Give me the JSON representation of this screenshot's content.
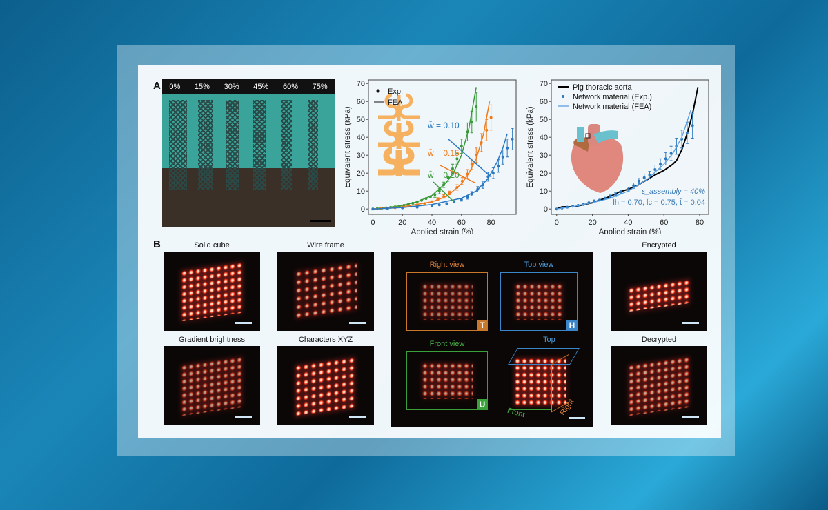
{
  "panel_a": {
    "label": "A",
    "strain_labels": [
      "0%",
      "15%",
      "30%",
      "45%",
      "60%",
      "75%"
    ]
  },
  "panel_b": {
    "label": "B",
    "captions": {
      "solid": "Solid cube",
      "wire": "Wire frame",
      "gradient": "Gradient brightness",
      "xyz": "Characters XYZ",
      "encrypted": "Encrypted",
      "decrypted": "Decrypted"
    },
    "views": {
      "right": "Right view",
      "top": "Top view",
      "front": "Front view",
      "tag_t": "T",
      "tag_h": "H",
      "tag_u": "U",
      "cube_top": "Top",
      "cube_front": "Front",
      "cube_right": "Right"
    }
  },
  "chart_data": [
    {
      "type": "line",
      "xlabel": "Applied strain (%)",
      "ylabel": "Equivalent stress (kPa)",
      "xlim": [
        -3,
        97
      ],
      "ylim": [
        -3,
        72
      ],
      "xticks": [
        0,
        20,
        40,
        60,
        80
      ],
      "yticks": [
        0,
        10,
        20,
        30,
        40,
        50,
        60,
        70
      ],
      "legend": {
        "exp": "Exp.",
        "fea": "FEA"
      },
      "legend_position": "top-left",
      "series": [
        {
          "name": "w̄ = 0.20",
          "color": "#3a9a3a",
          "exp": [
            [
              0,
              0,
              0
            ],
            [
              3,
              0.2,
              0
            ],
            [
              6,
              0.4,
              0
            ],
            [
              9,
              0.6,
              0
            ],
            [
              12,
              0.9,
              0
            ],
            [
              15,
              1.2,
              0
            ],
            [
              18,
              1.6,
              0
            ],
            [
              21,
              2,
              0
            ],
            [
              24,
              2.5,
              0
            ],
            [
              27,
              3.2,
              0
            ],
            [
              30,
              4,
              0
            ],
            [
              33,
              4.8,
              0
            ],
            [
              36,
              5.8,
              0
            ],
            [
              39,
              6.8,
              0
            ],
            [
              42,
              8,
              1.5
            ],
            [
              45,
              10,
              1.5
            ],
            [
              48,
              13.5,
              1.5
            ],
            [
              51,
              17.5,
              2
            ],
            [
              54,
              22.5,
              2.5
            ],
            [
              57,
              28,
              3
            ],
            [
              60,
              35,
              4
            ],
            [
              64,
              43,
              5
            ],
            [
              67,
              48.5,
              6
            ],
            [
              70,
              57,
              8
            ]
          ],
          "fea": [
            [
              0,
              0
            ],
            [
              10,
              0.8
            ],
            [
              20,
              2
            ],
            [
              30,
              4
            ],
            [
              40,
              7.5
            ],
            [
              50,
              15
            ],
            [
              55,
              21
            ],
            [
              60,
              30
            ],
            [
              65,
              45
            ],
            [
              70,
              68
            ]
          ]
        },
        {
          "name": "w̄ = 0.15",
          "color": "#f07a1a",
          "exp": [
            [
              0,
              0,
              0
            ],
            [
              5,
              0.2,
              0
            ],
            [
              10,
              0.4,
              0
            ],
            [
              15,
              0.7,
              0
            ],
            [
              20,
              1,
              0
            ],
            [
              25,
              1.6,
              0
            ],
            [
              30,
              2.3,
              0
            ],
            [
              35,
              3,
              0
            ],
            [
              40,
              4,
              0
            ],
            [
              44,
              5.5,
              0.8
            ],
            [
              48,
              7,
              1
            ],
            [
              52,
              9,
              1
            ],
            [
              57,
              12,
              1.5
            ],
            [
              60.5,
              15.5,
              2
            ],
            [
              64,
              19.5,
              2.5
            ],
            [
              67,
              25,
              3
            ],
            [
              70,
              30,
              4
            ],
            [
              73.5,
              37,
              5
            ],
            [
              77,
              44,
              6
            ],
            [
              80,
              51,
              7
            ]
          ],
          "fea": [
            [
              0,
              0
            ],
            [
              20,
              1.2
            ],
            [
              40,
              4
            ],
            [
              50,
              7
            ],
            [
              60,
              14
            ],
            [
              65,
              20
            ],
            [
              70,
              28
            ],
            [
              75,
              42
            ],
            [
              79,
              60
            ]
          ]
        },
        {
          "name": "w̄ = 0.10",
          "color": "#2a78c0",
          "exp": [
            [
              0,
              0,
              0
            ],
            [
              10,
              0.3,
              0
            ],
            [
              20,
              0.6,
              0
            ],
            [
              30,
              1,
              0
            ],
            [
              40,
              1.8,
              0
            ],
            [
              45,
              2.3,
              0
            ],
            [
              50,
              3,
              0
            ],
            [
              55,
              4,
              0
            ],
            [
              60,
              5.2,
              0.8
            ],
            [
              64,
              6.5,
              1
            ],
            [
              67,
              8.5,
              1.2
            ],
            [
              71,
              11,
              1.5
            ],
            [
              74.5,
              13.5,
              2
            ],
            [
              78,
              18,
              2.5
            ],
            [
              81.5,
              20,
              3
            ],
            [
              85,
              24,
              3.5
            ],
            [
              88,
              29,
              4
            ],
            [
              91,
              34,
              5
            ],
            [
              94.5,
              39,
              6
            ]
          ],
          "fea": [
            [
              0,
              0
            ],
            [
              20,
              0.8
            ],
            [
              40,
              2.5
            ],
            [
              60,
              6
            ],
            [
              70,
              10
            ],
            [
              78,
              17
            ],
            [
              84,
              26
            ],
            [
              88,
              34
            ],
            [
              91,
              42
            ]
          ]
        }
      ]
    },
    {
      "type": "line",
      "xlabel": "Applied strain (%)",
      "ylabel": "Equivalent stress (kPa)",
      "xlim": [
        -3,
        85
      ],
      "ylim": [
        -3,
        72
      ],
      "xticks": [
        0,
        20,
        40,
        60,
        80
      ],
      "yticks": [
        0,
        10,
        20,
        30,
        40,
        50,
        60,
        70
      ],
      "legend_position": "top-left",
      "annotations": [
        "ε_assembly = 40%",
        "l̄h = 0.70, l̄c = 0.75, t̄ = 0.04"
      ],
      "series": [
        {
          "name": "Pig thoracic aorta",
          "color": "#000000",
          "values": [
            [
              0,
              0
            ],
            [
              3,
              1.2
            ],
            [
              10,
              1.3
            ],
            [
              20,
              3.5
            ],
            [
              30,
              7
            ],
            [
              35,
              9.5
            ],
            [
              40,
              11
            ],
            [
              45,
              13
            ],
            [
              50,
              16
            ],
            [
              55,
              19
            ],
            [
              60,
              21.5
            ],
            [
              65,
              25
            ],
            [
              67,
              27
            ],
            [
              70,
              33
            ],
            [
              73,
              42
            ],
            [
              76,
              53
            ],
            [
              79,
              68
            ]
          ]
        },
        {
          "name": "Network material (Exp.)",
          "color": "#2a78c0",
          "values": [
            [
              0,
              0,
              0
            ],
            [
              3,
              0.5,
              0
            ],
            [
              6,
              1,
              0
            ],
            [
              9,
              1.5,
              0
            ],
            [
              12,
              2,
              0
            ],
            [
              15,
              2.5,
              0
            ],
            [
              18,
              3.5,
              0
            ],
            [
              21,
              4.5,
              0
            ],
            [
              24,
              5,
              0
            ],
            [
              27,
              6,
              0
            ],
            [
              30,
              7,
              0.8
            ],
            [
              33,
              8,
              1
            ],
            [
              36,
              9.5,
              1
            ],
            [
              40,
              11,
              1.2
            ],
            [
              43,
              13,
              1.5
            ],
            [
              46,
              15.5,
              1.5
            ],
            [
              49,
              17.5,
              2
            ],
            [
              52,
              19,
              2
            ],
            [
              55,
              22,
              2.5
            ],
            [
              58,
              25,
              3
            ],
            [
              61,
              28,
              3.5
            ],
            [
              64,
              31,
              4
            ],
            [
              67,
              35,
              4.5
            ],
            [
              70,
              39,
              5
            ],
            [
              73,
              42.5,
              6
            ],
            [
              76,
              46.5,
              7
            ]
          ]
        },
        {
          "name": "Network material (FEA)",
          "color": "#5aa0e0",
          "values": [
            [
              0,
              0
            ],
            [
              10,
              1.5
            ],
            [
              20,
              3.5
            ],
            [
              30,
              6
            ],
            [
              40,
              10
            ],
            [
              50,
              16
            ],
            [
              60,
              25
            ],
            [
              65,
              31
            ],
            [
              70,
              40
            ],
            [
              75,
              55
            ]
          ]
        }
      ]
    }
  ]
}
